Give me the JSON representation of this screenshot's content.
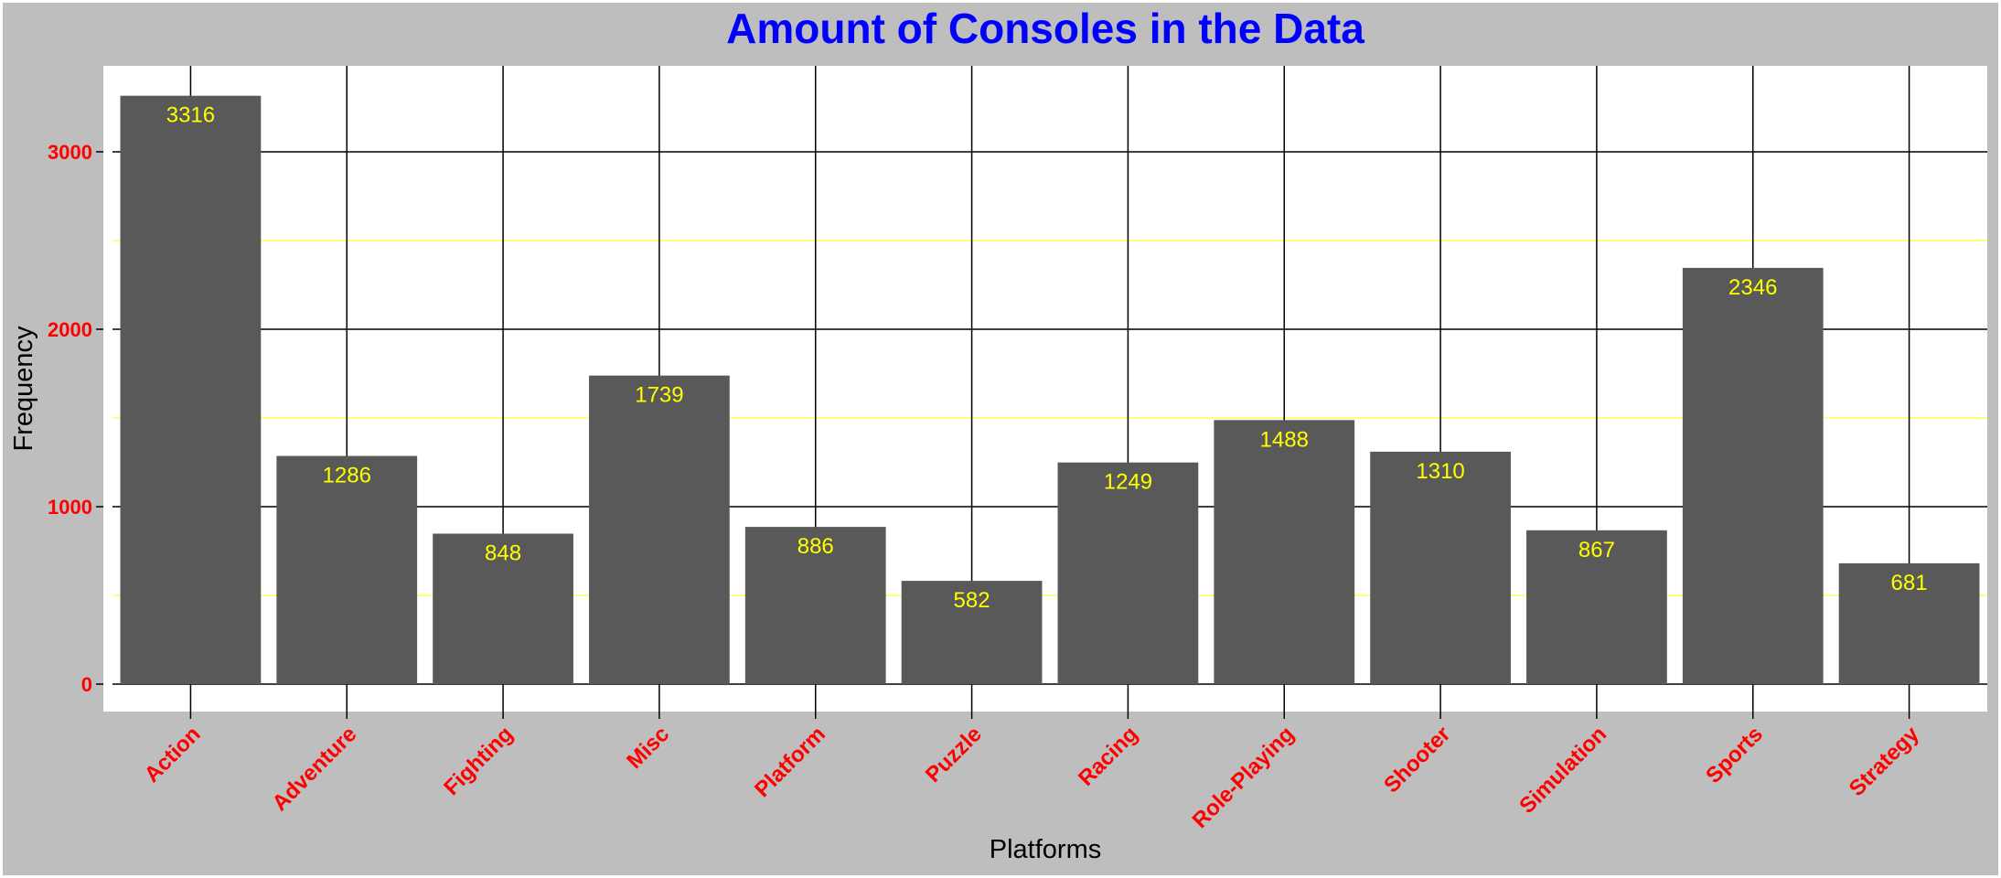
{
  "chart_data": {
    "type": "bar",
    "title": "Amount of Consoles in the Data",
    "xlabel": "Platforms",
    "ylabel": "Frequency",
    "categories": [
      "Action",
      "Adventure",
      "Fighting",
      "Misc",
      "Platform",
      "Puzzle",
      "Racing",
      "Role-Playing",
      "Shooter",
      "Simulation",
      "Sports",
      "Strategy"
    ],
    "values": [
      3316,
      1286,
      848,
      1739,
      886,
      582,
      1249,
      1488,
      1310,
      867,
      2346,
      681
    ],
    "ylim": [
      -160,
      3490
    ],
    "yticks": [
      0,
      1000,
      2000,
      3000
    ],
    "yticks_minor": [
      500,
      1500,
      2500
    ],
    "grid": true,
    "legend": "none",
    "colors": {
      "background": "#bebebe",
      "plot_background": "#ffffff",
      "bar": "#595959",
      "bar_label": "#ffff00",
      "title": "#0000ff",
      "tick_label": "#ff0000",
      "major_grid": "#000000",
      "minor_grid": "#ffff00",
      "axis_label": "#000000"
    }
  }
}
